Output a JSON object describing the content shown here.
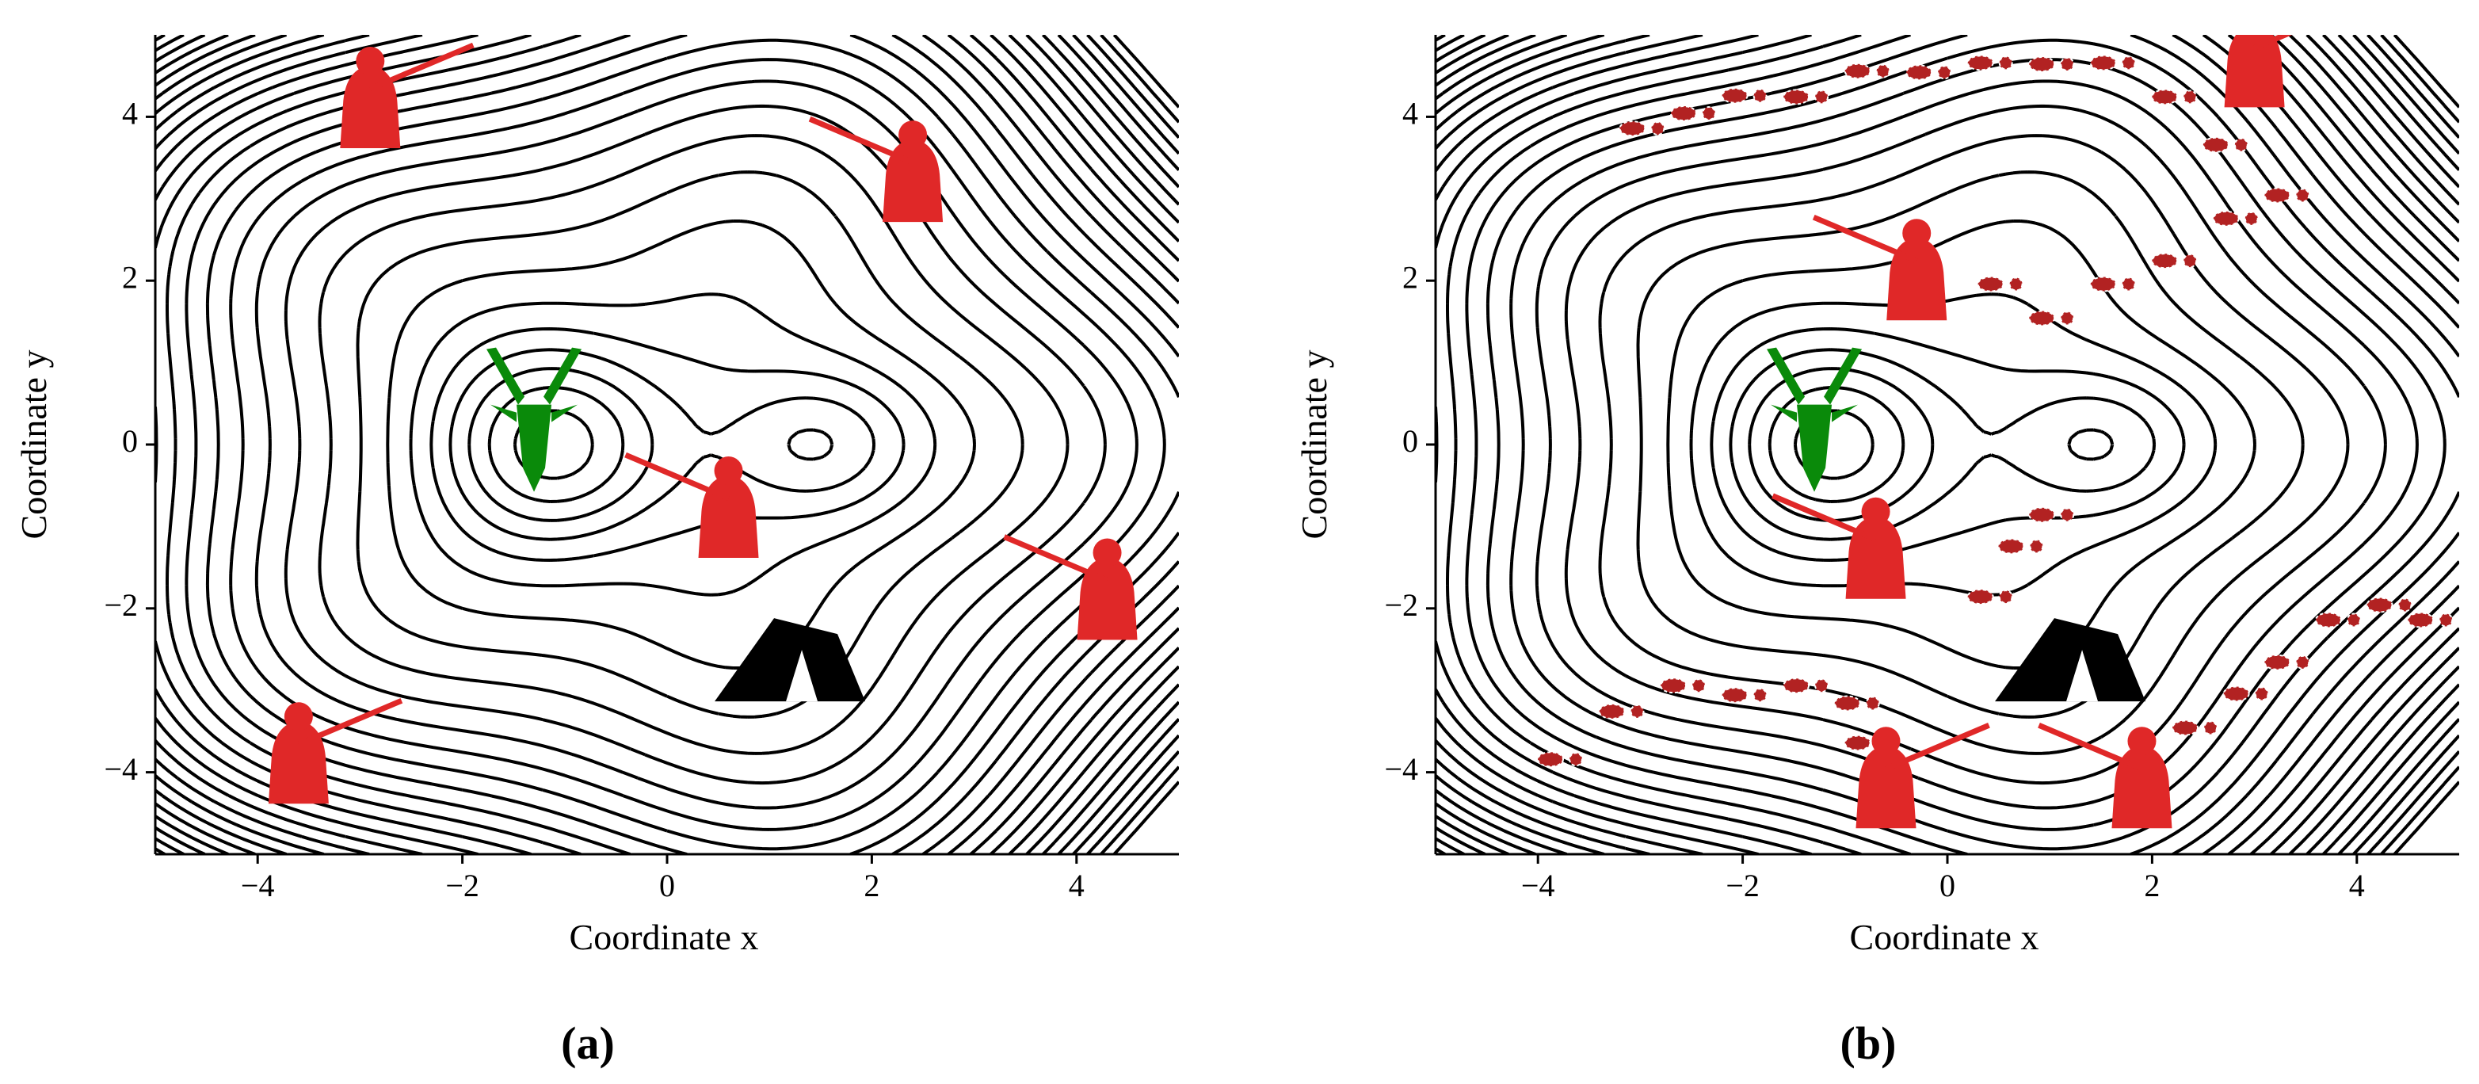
{
  "chart_data": [
    {
      "type": "contour",
      "panel_label": "(a)",
      "xlabel": "Coordinate x",
      "ylabel": "Coordinate y",
      "xlim": [
        -5,
        5
      ],
      "ylim": [
        -5,
        5
      ],
      "xticks": [
        {
          "value": -4,
          "label": "−4"
        },
        {
          "value": -2,
          "label": "−2"
        },
        0,
        2,
        4
      ],
      "yticks": [
        {
          "value": -4,
          "label": "−4"
        },
        {
          "value": -2,
          "label": "−2"
        },
        0,
        2,
        4
      ]
    },
    {
      "type": "contour",
      "panel_label": "(b)",
      "xlabel": "Coordinate x",
      "ylabel": "Coordinate y",
      "xlim": [
        -5,
        5
      ],
      "ylim": [
        -5,
        5
      ],
      "xticks": [
        {
          "value": -4,
          "label": "−4"
        },
        {
          "value": -2,
          "label": "−2"
        },
        0,
        2,
        4
      ],
      "yticks": [
        {
          "value": -4,
          "label": "−4"
        },
        {
          "value": -2,
          "label": "−2"
        },
        0,
        2,
        4
      ]
    }
  ]
}
